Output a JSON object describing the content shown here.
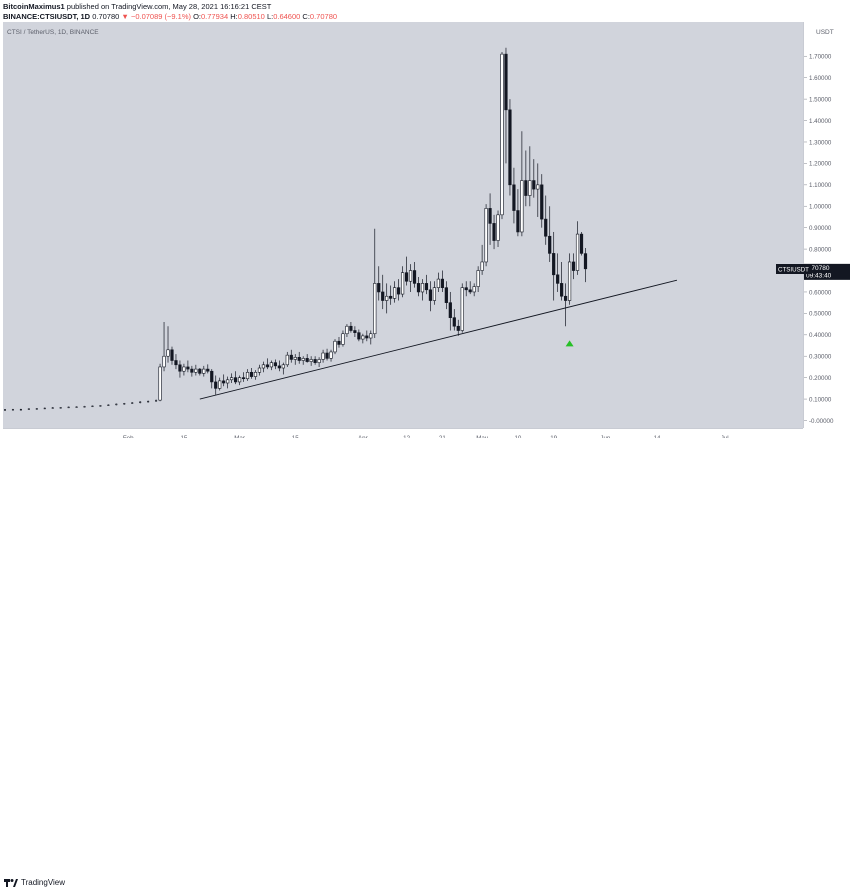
{
  "header": {
    "author": "BitcoinMaximus1",
    "published_text": "published on TradingView.com, May 28, 2021 16:16:21 CEST",
    "symbol_line": "BINANCE:CTSIUSDT, 1D",
    "last": "0.70780",
    "change": "−0.07089 (−9.1%)",
    "o_label": "O:",
    "o_value": "0.77934",
    "h_label": "H:",
    "h_value": "0.80510",
    "l_label": "L:",
    "l_value": "0.64600",
    "c_label": "C:",
    "c_value": "0.70780"
  },
  "legend": {
    "title": "CTSI / TetherUS, 1D, BINANCE"
  },
  "footer": {
    "brand": "TradingView"
  },
  "colors": {
    "background": "#d1d4dc",
    "candle_up": "#ffffff",
    "candle_down": "#131722",
    "support_line": "#131722",
    "marker": "#26c026",
    "tag_bg": "#131722"
  },
  "chart_data": {
    "type": "candlestick",
    "title": "CTSI / TetherUS, 1D, BINANCE",
    "y_unit": "USDT",
    "ylim": [
      -0.035,
      1.86
    ],
    "y_ticks": [
      1.7,
      1.6,
      1.5,
      1.4,
      1.3,
      1.2,
      1.1,
      1.0,
      0.9,
      0.8,
      0.7,
      0.6,
      0.5,
      0.4,
      0.3,
      0.2,
      0.1,
      0.0
    ],
    "y_tick_labels": [
      "1.70000",
      "1.60000",
      "1.50000",
      "1.40000",
      "1.30000",
      "1.20000",
      "1.10000",
      "1.00000",
      "0.90000",
      "0.80000",
      "0.70000",
      "0.60000",
      "0.50000",
      "0.40000",
      "0.30000",
      "0.20000",
      "0.10000",
      "-0.00000"
    ],
    "x_start_date": "2021-01-01",
    "x_ticks": [
      {
        "date": "2021-02-01",
        "label": "Feb"
      },
      {
        "date": "2021-02-15",
        "label": "15"
      },
      {
        "date": "2021-03-01",
        "label": "Mar"
      },
      {
        "date": "2021-03-15",
        "label": "15"
      },
      {
        "date": "2021-04-01",
        "label": "Apr"
      },
      {
        "date": "2021-04-12",
        "label": "12"
      },
      {
        "date": "2021-04-21",
        "label": "21"
      },
      {
        "date": "2021-05-01",
        "label": "May"
      },
      {
        "date": "2021-05-10",
        "label": "10"
      },
      {
        "date": "2021-05-19",
        "label": "19"
      },
      {
        "date": "2021-06-01",
        "label": "Jun"
      },
      {
        "date": "2021-06-14",
        "label": "14"
      },
      {
        "date": "2021-07-01",
        "label": "Jul"
      }
    ],
    "current_price": {
      "label": "CTSIUSDT",
      "value": "0.70780",
      "countdown": "09:43:40"
    },
    "support_line": {
      "start": {
        "date": "2021-02-19",
        "value": 0.1
      },
      "end": {
        "date": "2021-06-19",
        "value": 0.655
      }
    },
    "marker": {
      "date": "2021-05-23",
      "value": 0.36,
      "shape": "triangle-up"
    },
    "candles_early": [
      {
        "date": "2021-01-01",
        "o": 0.051,
        "h": 0.053,
        "l": 0.049,
        "c": 0.05
      },
      {
        "date": "2021-01-03",
        "o": 0.05,
        "h": 0.054,
        "l": 0.048,
        "c": 0.052
      },
      {
        "date": "2021-01-05",
        "o": 0.052,
        "h": 0.055,
        "l": 0.05,
        "c": 0.051
      },
      {
        "date": "2021-01-07",
        "o": 0.051,
        "h": 0.056,
        "l": 0.05,
        "c": 0.055
      },
      {
        "date": "2021-01-09",
        "o": 0.055,
        "h": 0.058,
        "l": 0.053,
        "c": 0.056
      },
      {
        "date": "2021-01-11",
        "o": 0.056,
        "h": 0.06,
        "l": 0.054,
        "c": 0.058
      },
      {
        "date": "2021-01-13",
        "o": 0.058,
        "h": 0.062,
        "l": 0.056,
        "c": 0.06
      },
      {
        "date": "2021-01-15",
        "o": 0.06,
        "h": 0.063,
        "l": 0.058,
        "c": 0.061
      },
      {
        "date": "2021-01-17",
        "o": 0.061,
        "h": 0.065,
        "l": 0.059,
        "c": 0.063
      },
      {
        "date": "2021-01-19",
        "o": 0.063,
        "h": 0.066,
        "l": 0.061,
        "c": 0.064
      },
      {
        "date": "2021-01-21",
        "o": 0.064,
        "h": 0.068,
        "l": 0.062,
        "c": 0.066
      },
      {
        "date": "2021-01-23",
        "o": 0.066,
        "h": 0.07,
        "l": 0.064,
        "c": 0.068
      },
      {
        "date": "2021-01-25",
        "o": 0.068,
        "h": 0.072,
        "l": 0.066,
        "c": 0.07
      },
      {
        "date": "2021-01-27",
        "o": 0.07,
        "h": 0.075,
        "l": 0.068,
        "c": 0.073
      },
      {
        "date": "2021-01-29",
        "o": 0.073,
        "h": 0.079,
        "l": 0.071,
        "c": 0.077
      },
      {
        "date": "2021-01-31",
        "o": 0.077,
        "h": 0.082,
        "l": 0.074,
        "c": 0.08
      },
      {
        "date": "2021-02-02",
        "o": 0.08,
        "h": 0.085,
        "l": 0.078,
        "c": 0.083
      },
      {
        "date": "2021-02-04",
        "o": 0.083,
        "h": 0.09,
        "l": 0.08,
        "c": 0.087
      },
      {
        "date": "2021-02-06",
        "o": 0.087,
        "h": 0.093,
        "l": 0.084,
        "c": 0.09
      },
      {
        "date": "2021-02-08",
        "o": 0.09,
        "h": 0.098,
        "l": 0.088,
        "c": 0.094
      }
    ],
    "candles_main": [
      {
        "date": "2021-02-09",
        "o": 0.095,
        "h": 0.265,
        "l": 0.09,
        "c": 0.25
      },
      {
        "date": "2021-02-10",
        "o": 0.25,
        "h": 0.46,
        "l": 0.23,
        "c": 0.3
      },
      {
        "date": "2021-02-11",
        "o": 0.3,
        "h": 0.44,
        "l": 0.27,
        "c": 0.33
      },
      {
        "date": "2021-02-12",
        "o": 0.33,
        "h": 0.345,
        "l": 0.26,
        "c": 0.28
      },
      {
        "date": "2021-02-13",
        "o": 0.28,
        "h": 0.31,
        "l": 0.24,
        "c": 0.26
      },
      {
        "date": "2021-02-14",
        "o": 0.26,
        "h": 0.28,
        "l": 0.2,
        "c": 0.23
      },
      {
        "date": "2021-02-15",
        "o": 0.23,
        "h": 0.265,
        "l": 0.21,
        "c": 0.25
      },
      {
        "date": "2021-02-16",
        "o": 0.25,
        "h": 0.28,
        "l": 0.225,
        "c": 0.24
      },
      {
        "date": "2021-02-17",
        "o": 0.24,
        "h": 0.255,
        "l": 0.205,
        "c": 0.225
      },
      {
        "date": "2021-02-18",
        "o": 0.225,
        "h": 0.26,
        "l": 0.21,
        "c": 0.24
      },
      {
        "date": "2021-02-19",
        "o": 0.24,
        "h": 0.245,
        "l": 0.21,
        "c": 0.22
      },
      {
        "date": "2021-02-20",
        "o": 0.22,
        "h": 0.255,
        "l": 0.205,
        "c": 0.24
      },
      {
        "date": "2021-02-21",
        "o": 0.24,
        "h": 0.262,
        "l": 0.22,
        "c": 0.23
      },
      {
        "date": "2021-02-22",
        "o": 0.23,
        "h": 0.24,
        "l": 0.15,
        "c": 0.18
      },
      {
        "date": "2021-02-23",
        "o": 0.18,
        "h": 0.21,
        "l": 0.12,
        "c": 0.15
      },
      {
        "date": "2021-02-24",
        "o": 0.15,
        "h": 0.2,
        "l": 0.14,
        "c": 0.185
      },
      {
        "date": "2021-02-25",
        "o": 0.185,
        "h": 0.215,
        "l": 0.16,
        "c": 0.175
      },
      {
        "date": "2021-02-26",
        "o": 0.175,
        "h": 0.205,
        "l": 0.15,
        "c": 0.19
      },
      {
        "date": "2021-02-27",
        "o": 0.19,
        "h": 0.22,
        "l": 0.175,
        "c": 0.2
      },
      {
        "date": "2021-02-28",
        "o": 0.2,
        "h": 0.23,
        "l": 0.17,
        "c": 0.18
      },
      {
        "date": "2021-03-01",
        "o": 0.18,
        "h": 0.21,
        "l": 0.165,
        "c": 0.2
      },
      {
        "date": "2021-03-02",
        "o": 0.2,
        "h": 0.225,
        "l": 0.18,
        "c": 0.195
      },
      {
        "date": "2021-03-03",
        "o": 0.195,
        "h": 0.24,
        "l": 0.185,
        "c": 0.225
      },
      {
        "date": "2021-03-04",
        "o": 0.225,
        "h": 0.245,
        "l": 0.195,
        "c": 0.205
      },
      {
        "date": "2021-03-05",
        "o": 0.205,
        "h": 0.235,
        "l": 0.19,
        "c": 0.225
      },
      {
        "date": "2021-03-06",
        "o": 0.225,
        "h": 0.26,
        "l": 0.21,
        "c": 0.245
      },
      {
        "date": "2021-03-07",
        "o": 0.245,
        "h": 0.275,
        "l": 0.225,
        "c": 0.26
      },
      {
        "date": "2021-03-08",
        "o": 0.26,
        "h": 0.29,
        "l": 0.24,
        "c": 0.25
      },
      {
        "date": "2021-03-09",
        "o": 0.25,
        "h": 0.28,
        "l": 0.235,
        "c": 0.27
      },
      {
        "date": "2021-03-10",
        "o": 0.27,
        "h": 0.285,
        "l": 0.24,
        "c": 0.255
      },
      {
        "date": "2021-03-11",
        "o": 0.255,
        "h": 0.28,
        "l": 0.23,
        "c": 0.245
      },
      {
        "date": "2021-03-12",
        "o": 0.245,
        "h": 0.27,
        "l": 0.215,
        "c": 0.26
      },
      {
        "date": "2021-03-13",
        "o": 0.26,
        "h": 0.32,
        "l": 0.25,
        "c": 0.305
      },
      {
        "date": "2021-03-14",
        "o": 0.305,
        "h": 0.33,
        "l": 0.27,
        "c": 0.285
      },
      {
        "date": "2021-03-15",
        "o": 0.285,
        "h": 0.31,
        "l": 0.26,
        "c": 0.295
      },
      {
        "date": "2021-03-16",
        "o": 0.295,
        "h": 0.32,
        "l": 0.265,
        "c": 0.28
      },
      {
        "date": "2021-03-17",
        "o": 0.28,
        "h": 0.3,
        "l": 0.26,
        "c": 0.29
      },
      {
        "date": "2021-03-18",
        "o": 0.29,
        "h": 0.31,
        "l": 0.27,
        "c": 0.275
      },
      {
        "date": "2021-03-19",
        "o": 0.275,
        "h": 0.3,
        "l": 0.255,
        "c": 0.285
      },
      {
        "date": "2021-03-20",
        "o": 0.285,
        "h": 0.3,
        "l": 0.26,
        "c": 0.27
      },
      {
        "date": "2021-03-21",
        "o": 0.27,
        "h": 0.295,
        "l": 0.25,
        "c": 0.285
      },
      {
        "date": "2021-03-22",
        "o": 0.285,
        "h": 0.33,
        "l": 0.27,
        "c": 0.315
      },
      {
        "date": "2021-03-23",
        "o": 0.315,
        "h": 0.335,
        "l": 0.28,
        "c": 0.29
      },
      {
        "date": "2021-03-24",
        "o": 0.29,
        "h": 0.33,
        "l": 0.275,
        "c": 0.32
      },
      {
        "date": "2021-03-25",
        "o": 0.32,
        "h": 0.38,
        "l": 0.31,
        "c": 0.37
      },
      {
        "date": "2021-03-26",
        "o": 0.37,
        "h": 0.39,
        "l": 0.34,
        "c": 0.355
      },
      {
        "date": "2021-03-27",
        "o": 0.355,
        "h": 0.42,
        "l": 0.345,
        "c": 0.405
      },
      {
        "date": "2021-03-28",
        "o": 0.405,
        "h": 0.45,
        "l": 0.39,
        "c": 0.44
      },
      {
        "date": "2021-03-29",
        "o": 0.44,
        "h": 0.46,
        "l": 0.41,
        "c": 0.42
      },
      {
        "date": "2021-03-30",
        "o": 0.42,
        "h": 0.44,
        "l": 0.39,
        "c": 0.41
      },
      {
        "date": "2021-03-31",
        "o": 0.41,
        "h": 0.425,
        "l": 0.37,
        "c": 0.38
      },
      {
        "date": "2021-04-01",
        "o": 0.38,
        "h": 0.405,
        "l": 0.36,
        "c": 0.395
      },
      {
        "date": "2021-04-02",
        "o": 0.395,
        "h": 0.42,
        "l": 0.37,
        "c": 0.385
      },
      {
        "date": "2021-04-03",
        "o": 0.385,
        "h": 0.42,
        "l": 0.355,
        "c": 0.405
      },
      {
        "date": "2021-04-04",
        "o": 0.405,
        "h": 0.895,
        "l": 0.385,
        "c": 0.64
      },
      {
        "date": "2021-04-05",
        "o": 0.64,
        "h": 0.72,
        "l": 0.56,
        "c": 0.6
      },
      {
        "date": "2021-04-06",
        "o": 0.6,
        "h": 0.68,
        "l": 0.52,
        "c": 0.56
      },
      {
        "date": "2021-04-07",
        "o": 0.56,
        "h": 0.64,
        "l": 0.5,
        "c": 0.58
      },
      {
        "date": "2021-04-08",
        "o": 0.58,
        "h": 0.63,
        "l": 0.54,
        "c": 0.57
      },
      {
        "date": "2021-04-09",
        "o": 0.57,
        "h": 0.65,
        "l": 0.55,
        "c": 0.62
      },
      {
        "date": "2021-04-10",
        "o": 0.62,
        "h": 0.66,
        "l": 0.56,
        "c": 0.59
      },
      {
        "date": "2021-04-11",
        "o": 0.59,
        "h": 0.72,
        "l": 0.575,
        "c": 0.69
      },
      {
        "date": "2021-04-12",
        "o": 0.69,
        "h": 0.765,
        "l": 0.63,
        "c": 0.65
      },
      {
        "date": "2021-04-13",
        "o": 0.65,
        "h": 0.73,
        "l": 0.6,
        "c": 0.7
      },
      {
        "date": "2021-04-14",
        "o": 0.7,
        "h": 0.74,
        "l": 0.62,
        "c": 0.64
      },
      {
        "date": "2021-04-15",
        "o": 0.64,
        "h": 0.67,
        "l": 0.58,
        "c": 0.6
      },
      {
        "date": "2021-04-16",
        "o": 0.6,
        "h": 0.66,
        "l": 0.56,
        "c": 0.64
      },
      {
        "date": "2021-04-17",
        "o": 0.64,
        "h": 0.68,
        "l": 0.59,
        "c": 0.61
      },
      {
        "date": "2021-04-18",
        "o": 0.61,
        "h": 0.65,
        "l": 0.51,
        "c": 0.56
      },
      {
        "date": "2021-04-19",
        "o": 0.56,
        "h": 0.65,
        "l": 0.54,
        "c": 0.62
      },
      {
        "date": "2021-04-20",
        "o": 0.62,
        "h": 0.69,
        "l": 0.6,
        "c": 0.66
      },
      {
        "date": "2021-04-21",
        "o": 0.66,
        "h": 0.7,
        "l": 0.6,
        "c": 0.62
      },
      {
        "date": "2021-04-22",
        "o": 0.62,
        "h": 0.65,
        "l": 0.52,
        "c": 0.55
      },
      {
        "date": "2021-04-23",
        "o": 0.55,
        "h": 0.6,
        "l": 0.42,
        "c": 0.48
      },
      {
        "date": "2021-04-24",
        "o": 0.48,
        "h": 0.52,
        "l": 0.42,
        "c": 0.44
      },
      {
        "date": "2021-04-25",
        "o": 0.44,
        "h": 0.47,
        "l": 0.395,
        "c": 0.42
      },
      {
        "date": "2021-04-26",
        "o": 0.42,
        "h": 0.64,
        "l": 0.41,
        "c": 0.62
      },
      {
        "date": "2021-04-27",
        "o": 0.62,
        "h": 0.65,
        "l": 0.58,
        "c": 0.61
      },
      {
        "date": "2021-04-28",
        "o": 0.61,
        "h": 0.65,
        "l": 0.59,
        "c": 0.6
      },
      {
        "date": "2021-04-29",
        "o": 0.6,
        "h": 0.64,
        "l": 0.58,
        "c": 0.625
      },
      {
        "date": "2021-04-30",
        "o": 0.625,
        "h": 0.72,
        "l": 0.6,
        "c": 0.7
      },
      {
        "date": "2021-05-01",
        "o": 0.7,
        "h": 0.82,
        "l": 0.68,
        "c": 0.74
      },
      {
        "date": "2021-05-02",
        "o": 0.74,
        "h": 1.01,
        "l": 0.72,
        "c": 0.99
      },
      {
        "date": "2021-05-03",
        "o": 0.99,
        "h": 1.06,
        "l": 0.82,
        "c": 0.92
      },
      {
        "date": "2021-05-04",
        "o": 0.92,
        "h": 0.96,
        "l": 0.8,
        "c": 0.84
      },
      {
        "date": "2021-05-05",
        "o": 0.84,
        "h": 0.98,
        "l": 0.81,
        "c": 0.96
      },
      {
        "date": "2021-05-06",
        "o": 0.96,
        "h": 1.72,
        "l": 0.94,
        "c": 1.71
      },
      {
        "date": "2021-05-07",
        "o": 1.71,
        "h": 1.74,
        "l": 1.2,
        "c": 1.45
      },
      {
        "date": "2021-05-08",
        "o": 1.45,
        "h": 1.5,
        "l": 1.05,
        "c": 1.1
      },
      {
        "date": "2021-05-09",
        "o": 1.1,
        "h": 1.18,
        "l": 0.92,
        "c": 0.98
      },
      {
        "date": "2021-05-10",
        "o": 0.98,
        "h": 1.08,
        "l": 0.86,
        "c": 0.88
      },
      {
        "date": "2021-05-11",
        "o": 0.88,
        "h": 1.35,
        "l": 0.86,
        "c": 1.12
      },
      {
        "date": "2021-05-12",
        "o": 1.12,
        "h": 1.26,
        "l": 1.0,
        "c": 1.05
      },
      {
        "date": "2021-05-13",
        "o": 1.05,
        "h": 1.28,
        "l": 1.0,
        "c": 1.12
      },
      {
        "date": "2021-05-14",
        "o": 1.12,
        "h": 1.22,
        "l": 1.04,
        "c": 1.08
      },
      {
        "date": "2021-05-15",
        "o": 1.08,
        "h": 1.2,
        "l": 0.95,
        "c": 1.1
      },
      {
        "date": "2021-05-16",
        "o": 1.1,
        "h": 1.15,
        "l": 0.9,
        "c": 0.94
      },
      {
        "date": "2021-05-17",
        "o": 0.94,
        "h": 1.05,
        "l": 0.82,
        "c": 0.86
      },
      {
        "date": "2021-05-18",
        "o": 0.86,
        "h": 1.0,
        "l": 0.74,
        "c": 0.78
      },
      {
        "date": "2021-05-19",
        "o": 0.78,
        "h": 0.88,
        "l": 0.56,
        "c": 0.68
      },
      {
        "date": "2021-05-20",
        "o": 0.68,
        "h": 0.78,
        "l": 0.6,
        "c": 0.64
      },
      {
        "date": "2021-05-21",
        "o": 0.64,
        "h": 0.74,
        "l": 0.56,
        "c": 0.58
      },
      {
        "date": "2021-05-22",
        "o": 0.58,
        "h": 0.64,
        "l": 0.44,
        "c": 0.56
      },
      {
        "date": "2021-05-23",
        "o": 0.56,
        "h": 0.78,
        "l": 0.54,
        "c": 0.74
      },
      {
        "date": "2021-05-24",
        "o": 0.74,
        "h": 0.78,
        "l": 0.66,
        "c": 0.7
      },
      {
        "date": "2021-05-25",
        "o": 0.7,
        "h": 0.93,
        "l": 0.68,
        "c": 0.87
      },
      {
        "date": "2021-05-26",
        "o": 0.87,
        "h": 0.88,
        "l": 0.77,
        "c": 0.78
      },
      {
        "date": "2021-05-27",
        "o": 0.779,
        "h": 0.805,
        "l": 0.646,
        "c": 0.708
      }
    ]
  }
}
